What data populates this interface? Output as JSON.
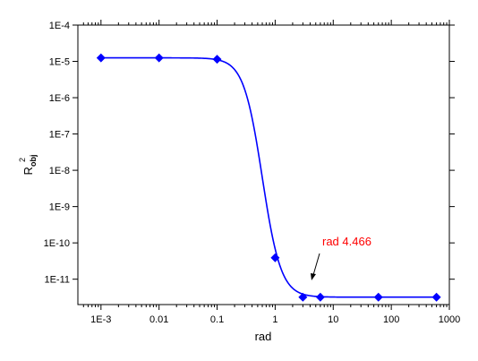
{
  "chart_data": {
    "type": "scatter",
    "x_scale": "log",
    "y_scale": "log",
    "xlabel": "rad",
    "ylabel_main": "R",
    "ylabel_sup": "2",
    "ylabel_sub": "obj",
    "xlim": [
      0.0004,
      1000
    ],
    "ylim": [
      2e-12,
      0.0001
    ],
    "x_ticks": [
      {
        "value": 0.001,
        "label": "1E-3"
      },
      {
        "value": 0.01,
        "label": "0.01"
      },
      {
        "value": 0.1,
        "label": "0.1"
      },
      {
        "value": 1,
        "label": "1"
      },
      {
        "value": 10,
        "label": "10"
      },
      {
        "value": 100,
        "label": "100"
      },
      {
        "value": 1000,
        "label": "1000"
      }
    ],
    "y_ticks": [
      {
        "value": 1e-11,
        "label": "1E-11"
      },
      {
        "value": 1e-10,
        "label": "1E-10"
      },
      {
        "value": 1e-09,
        "label": "1E-9"
      },
      {
        "value": 1e-08,
        "label": "1E-8"
      },
      {
        "value": 1e-07,
        "label": "1E-7"
      },
      {
        "value": 1e-06,
        "label": "1E-6"
      },
      {
        "value": 1e-05,
        "label": "1E-5"
      },
      {
        "value": 0.0001,
        "label": "1E-4"
      }
    ],
    "points": [
      {
        "x": 0.001,
        "y": 1.25e-05
      },
      {
        "x": 0.01,
        "y": 1.25e-05
      },
      {
        "x": 0.1,
        "y": 1.15e-05
      },
      {
        "x": 1,
        "y": 3.9e-11
      },
      {
        "x": 3,
        "y": 3.2e-12
      },
      {
        "x": 6,
        "y": 3.2e-12
      },
      {
        "x": 60,
        "y": 3.2e-12
      },
      {
        "x": 600,
        "y": 3.2e-12
      }
    ],
    "fit_curve": {
      "y_top": 1.25e-05,
      "y_bottom": 3.2e-12,
      "x_mid": 0.6,
      "steepness": 2.7,
      "x_range": [
        0.001,
        600
      ]
    },
    "annotation": {
      "text": "rad 4.466",
      "x": 4.466,
      "y": 3.2e-12
    },
    "colors": {
      "series": "#0000ff",
      "annotation": "#ff0000",
      "axis": "#000000"
    },
    "grid": false,
    "legend": "none"
  }
}
